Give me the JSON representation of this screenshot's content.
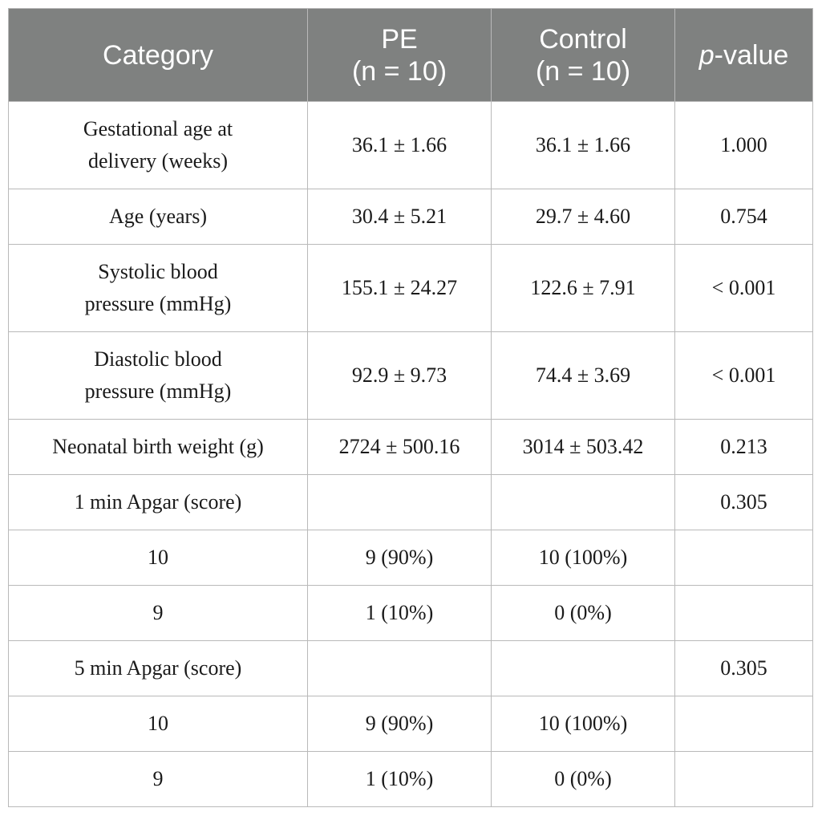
{
  "header": {
    "category": "Category",
    "pe_line1": "PE",
    "pe_line2": "(n = 10)",
    "control_line1": "Control",
    "control_line2": "(n = 10)",
    "pvalue_italic": "p",
    "pvalue_rest": "-value"
  },
  "rows": [
    {
      "category_line1": "Gestational age at",
      "category_line2": "delivery (weeks)",
      "pe": "36.1 ± 1.66",
      "control": "36.1 ± 1.66",
      "pvalue": "1.000"
    },
    {
      "category_line1": "Age (years)",
      "pe": "30.4 ± 5.21",
      "control": "29.7 ± 4.60",
      "pvalue": "0.754"
    },
    {
      "category_line1": "Systolic blood",
      "category_line2": "pressure (mmHg)",
      "pe": "155.1 ± 24.27",
      "control": "122.6 ± 7.91",
      "pvalue": "< 0.001"
    },
    {
      "category_line1": "Diastolic blood",
      "category_line2": "pressure (mmHg)",
      "pe": "92.9 ± 9.73",
      "control": "74.4 ± 3.69",
      "pvalue": "< 0.001"
    },
    {
      "category_line1": "Neonatal birth weight (g)",
      "pe": "2724 ± 500.16",
      "control": "3014 ± 503.42",
      "pvalue": "0.213"
    },
    {
      "category_line1": "1 min Apgar (score)",
      "pe": "",
      "control": "",
      "pvalue": "0.305"
    },
    {
      "category_line1": "10",
      "pe": "9 (90%)",
      "control": "10 (100%)",
      "pvalue": ""
    },
    {
      "category_line1": "9",
      "pe": "1 (10%)",
      "control": "0 (0%)",
      "pvalue": ""
    },
    {
      "category_line1": "5 min Apgar (score)",
      "pe": "",
      "control": "",
      "pvalue": "0.305"
    },
    {
      "category_line1": "10",
      "pe": "9 (90%)",
      "control": "10 (100%)",
      "pvalue": ""
    },
    {
      "category_line1": "9",
      "pe": "1 (10%)",
      "control": "0 (0%)",
      "pvalue": ""
    }
  ]
}
